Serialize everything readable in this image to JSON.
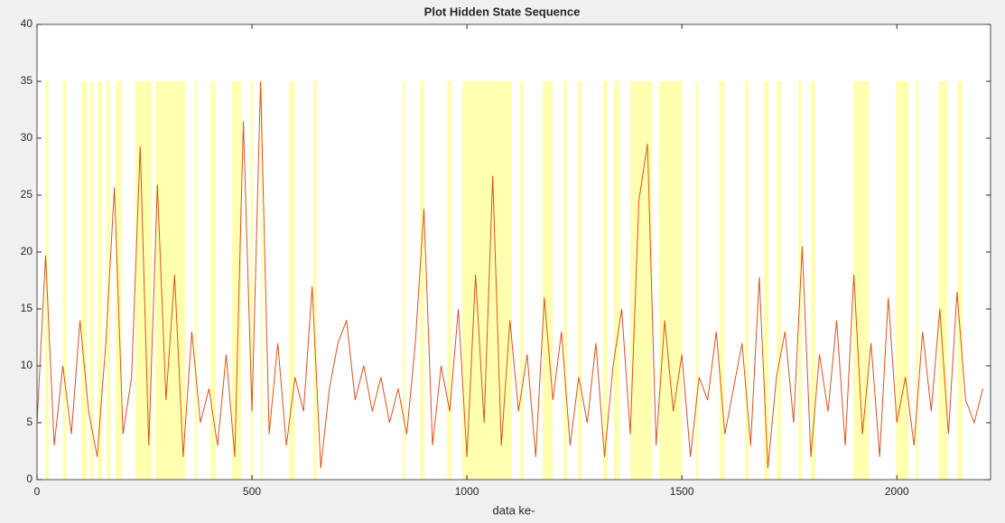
{
  "chart_data": {
    "type": "line",
    "title": "Plot Hidden State Sequence",
    "xlabel": "data ke-",
    "xlim": [
      0,
      2218
    ],
    "ylim": [
      0,
      40
    ],
    "xticks": [
      0,
      500,
      1000,
      1500,
      2000
    ],
    "yticks": [
      0,
      5,
      10,
      15,
      20,
      25,
      30,
      35,
      40
    ],
    "band_color": "#ffffb0",
    "band_top": 35,
    "bands": [
      [
        19,
        27
      ],
      [
        61,
        69
      ],
      [
        103,
        116
      ],
      [
        124,
        132
      ],
      [
        141,
        151
      ],
      [
        162,
        170
      ],
      [
        183,
        197
      ],
      [
        229,
        267
      ],
      [
        275,
        345
      ],
      [
        366,
        372
      ],
      [
        403,
        416
      ],
      [
        454,
        475
      ],
      [
        496,
        502
      ],
      [
        521,
        525
      ],
      [
        586,
        599
      ],
      [
        643,
        651
      ],
      [
        851,
        857
      ],
      [
        891,
        901
      ],
      [
        954,
        964
      ],
      [
        989,
        1105
      ],
      [
        1124,
        1132
      ],
      [
        1176,
        1200
      ],
      [
        1225,
        1233
      ],
      [
        1258,
        1267
      ],
      [
        1317,
        1328
      ],
      [
        1342,
        1355
      ],
      [
        1380,
        1431
      ],
      [
        1447,
        1500
      ],
      [
        1532,
        1538
      ],
      [
        1588,
        1599
      ],
      [
        1647,
        1655
      ],
      [
        1691,
        1702
      ],
      [
        1721,
        1731
      ],
      [
        1771,
        1779
      ],
      [
        1800,
        1811
      ],
      [
        1899,
        1935
      ],
      [
        1998,
        2027
      ],
      [
        2044,
        2050
      ],
      [
        2097,
        2118
      ],
      [
        2141,
        2153
      ]
    ],
    "x": [
      0,
      20,
      40,
      60,
      80,
      100,
      120,
      140,
      160,
      180,
      200,
      220,
      240,
      260,
      280,
      300,
      320,
      340,
      360,
      380,
      400,
      420,
      440,
      460,
      480,
      500,
      520,
      540,
      560,
      580,
      600,
      620,
      640,
      660,
      680,
      700,
      720,
      740,
      760,
      780,
      800,
      820,
      840,
      860,
      880,
      900,
      920,
      940,
      960,
      980,
      1000,
      1020,
      1040,
      1060,
      1080,
      1100,
      1120,
      1140,
      1160,
      1180,
      1200,
      1220,
      1240,
      1260,
      1280,
      1300,
      1320,
      1340,
      1360,
      1380,
      1400,
      1420,
      1440,
      1460,
      1480,
      1500,
      1520,
      1540,
      1560,
      1580,
      1600,
      1620,
      1640,
      1660,
      1680,
      1700,
      1720,
      1740,
      1760,
      1780,
      1800,
      1820,
      1840,
      1860,
      1880,
      1900,
      1920,
      1940,
      1960,
      1980,
      2000,
      2020,
      2040,
      2060,
      2080,
      2100,
      2120,
      2140,
      2160,
      2180,
      2200
    ],
    "series": [
      {
        "color": "#d95319",
        "values": [
          5,
          19.7,
          3,
          10,
          4,
          14,
          6,
          2,
          12,
          25.7,
          4,
          9,
          29.3,
          3,
          25.9,
          7,
          18,
          2,
          13,
          5,
          8,
          3,
          11,
          2,
          31.5,
          6,
          35,
          4,
          12,
          3,
          9,
          6,
          17,
          1,
          8,
          12,
          14,
          7,
          10,
          6,
          9,
          5,
          8,
          4,
          12,
          23.8,
          3,
          10,
          6,
          15,
          2,
          18,
          5,
          26.7,
          3,
          14,
          6,
          11,
          2,
          16,
          7,
          13,
          3,
          9,
          5,
          12,
          2,
          10,
          15,
          4,
          24.5,
          29.5,
          3,
          14,
          6,
          11,
          2,
          9,
          7,
          13,
          4,
          8,
          12,
          3,
          17.8,
          1,
          9,
          13,
          5,
          20.5,
          2,
          11,
          6,
          14,
          3,
          18,
          4,
          12,
          2,
          16,
          5,
          9,
          3,
          13,
          6,
          15,
          4,
          16.5,
          7,
          5,
          8
        ]
      }
    ]
  }
}
